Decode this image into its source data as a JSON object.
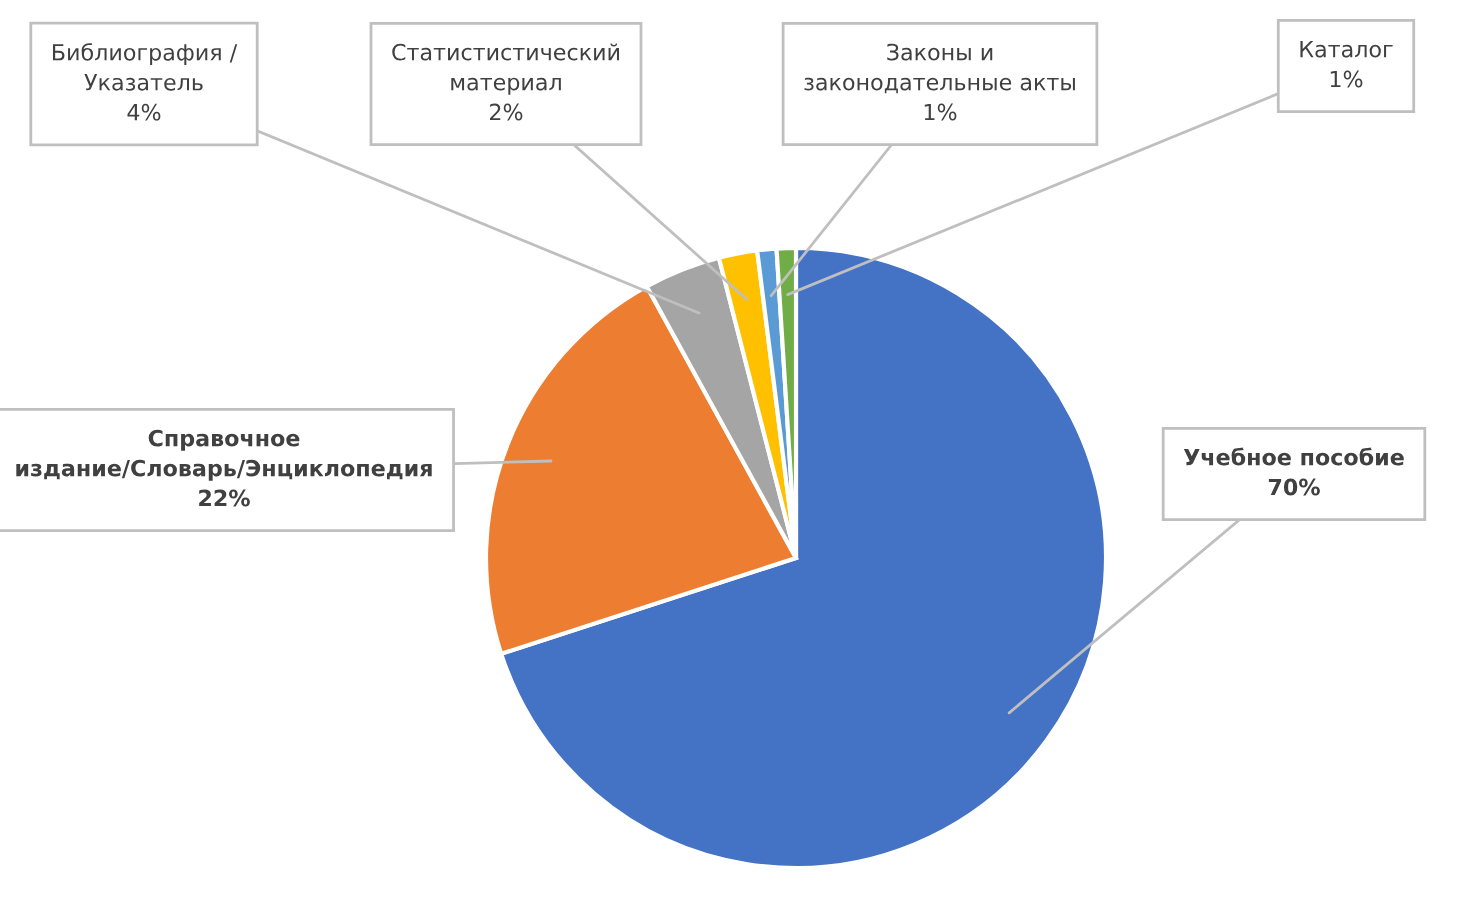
{
  "chart_data": {
    "type": "pie",
    "categories": [
      "Учебное пособие",
      "Справочное\nиздание/Словарь/Энциклопедия",
      "Библиография /\nУказатель",
      "Статистистический\nматериал",
      "Законы и\nзаконодательные акты",
      "Каталог"
    ],
    "values": [
      70,
      22,
      4,
      2,
      1,
      1
    ],
    "value_labels": [
      "70%",
      "22%",
      "4%",
      "2%",
      "1%",
      "1%"
    ],
    "colors": [
      "#4472c4",
      "#ed7d31",
      "#a5a5a5",
      "#ffc000",
      "#5b9bd5",
      "#70ad47"
    ],
    "legend": false
  }
}
